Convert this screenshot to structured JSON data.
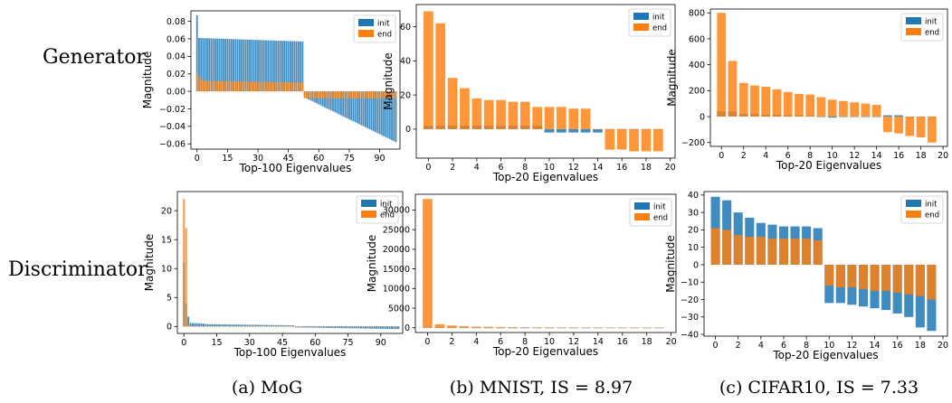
{
  "row_labels": [
    "Generator",
    "Discriminator"
  ],
  "captions": [
    "(a) MoG",
    "(b) MNIST, IS = 8.97",
    "(c) CIFAR10, IS = 7.33"
  ],
  "legend": [
    "init",
    "end"
  ],
  "colors": {
    "init": "#1f77b4",
    "end": "#ff7f0e"
  },
  "chart_data": [
    {
      "type": "bar",
      "title": "",
      "panel": "MoG Generator",
      "xlabel": "Top-100 Eigenvalues",
      "ylabel": "Magnitude",
      "xlim": [
        -3,
        100
      ],
      "ylim": [
        -0.066,
        0.092
      ],
      "xticks": [
        0,
        15,
        30,
        45,
        60,
        75,
        90
      ],
      "yticks": [
        -0.06,
        -0.04,
        -0.02,
        0.0,
        0.02,
        0.04,
        0.06,
        0.08
      ],
      "ytick_labels": [
        "−0.06",
        "−0.04",
        "−0.02",
        "0.00",
        "0.02",
        "0.04",
        "0.06",
        "0.08"
      ],
      "legend_position": "top-right",
      "series": [
        {
          "name": "init",
          "segments": [
            {
              "i0": 0,
              "i1": 0,
              "v0": 0.087,
              "v1": 0.087
            },
            {
              "i0": 1,
              "i1": 52,
              "v0": 0.061,
              "v1": 0.057
            },
            {
              "i0": 53,
              "i1": 98,
              "v0": -0.007,
              "v1": -0.058
            }
          ]
        },
        {
          "name": "end",
          "segments": [
            {
              "i0": 0,
              "i1": 0,
              "v0": 0.02,
              "v1": 0.02
            },
            {
              "i0": 1,
              "i1": 3,
              "v0": 0.016,
              "v1": 0.012
            },
            {
              "i0": 4,
              "i1": 52,
              "v0": 0.012,
              "v1": 0.01
            },
            {
              "i0": 53,
              "i1": 98,
              "v0": -0.008,
              "v1": -0.008
            }
          ]
        }
      ]
    },
    {
      "type": "bar",
      "title": "",
      "panel": "MNIST Generator",
      "xlabel": "Top-20 Eigenvalues",
      "ylabel": "Magnitude",
      "xlim": [
        -1,
        20.4
      ],
      "ylim": [
        -17,
        73
      ],
      "xticks": [
        0,
        2,
        4,
        6,
        8,
        10,
        12,
        14,
        16,
        18,
        20
      ],
      "yticks": [
        0,
        20,
        40,
        60
      ],
      "legend_position": "top-right",
      "series": [
        {
          "name": "init",
          "values": [
            2,
            2,
            2,
            2,
            2,
            2,
            2,
            2,
            2,
            2,
            -2,
            -2,
            -2,
            -2,
            -2,
            0,
            0,
            0,
            0,
            0
          ]
        },
        {
          "name": "end",
          "values": [
            69,
            62,
            30,
            24,
            18,
            17,
            17,
            16,
            16,
            13,
            13,
            13,
            12,
            12,
            0,
            -12,
            -12,
            -13,
            -13,
            -13
          ]
        }
      ]
    },
    {
      "type": "bar",
      "title": "",
      "panel": "CIFAR10 Generator",
      "xlabel": "Top-20 Eigenvalues",
      "ylabel": "Magnitude",
      "xlim": [
        -1,
        20.4
      ],
      "ylim": [
        -230,
        830
      ],
      "xticks": [
        0,
        2,
        4,
        6,
        8,
        10,
        12,
        14,
        16,
        18,
        20
      ],
      "yticks": [
        -200,
        0,
        200,
        400,
        600,
        800
      ],
      "ytick_labels": [
        "−200",
        "0",
        "200",
        "400",
        "600",
        "800"
      ],
      "legend_position": "top-right",
      "series": [
        {
          "name": "init",
          "values": [
            40,
            40,
            20,
            20,
            15,
            15,
            10,
            10,
            8,
            0,
            -8,
            0,
            0,
            0,
            0,
            10,
            10,
            0,
            0,
            0
          ]
        },
        {
          "name": "end",
          "values": [
            800,
            430,
            260,
            240,
            230,
            210,
            190,
            175,
            170,
            150,
            130,
            120,
            110,
            100,
            90,
            -120,
            -130,
            -150,
            -160,
            -200
          ]
        }
      ]
    },
    {
      "type": "bar",
      "title": "",
      "panel": "MoG Discriminator",
      "xlabel": "Top-100 Eigenvalues",
      "ylabel": "Magnitude",
      "xlim": [
        -3,
        100
      ],
      "ylim": [
        -1.2,
        23.3
      ],
      "xticks": [
        0,
        15,
        30,
        45,
        60,
        75,
        90
      ],
      "yticks": [
        0,
        5,
        10,
        15,
        20
      ],
      "legend_position": "top-right",
      "series": [
        {
          "name": "init",
          "segments": [
            {
              "i0": 0,
              "i1": 0,
              "v0": 11,
              "v1": 11
            },
            {
              "i0": 1,
              "i1": 1,
              "v0": 4,
              "v1": 4
            },
            {
              "i0": 2,
              "i1": 2,
              "v0": 1.7,
              "v1": 1.7
            },
            {
              "i0": 3,
              "i1": 9,
              "v0": 0.6,
              "v1": 0.5
            },
            {
              "i0": 10,
              "i1": 50,
              "v0": 0.4,
              "v1": 0.2
            },
            {
              "i0": 51,
              "i1": 98,
              "v0": -0.15,
              "v1": -0.45
            }
          ]
        },
        {
          "name": "end",
          "segments": [
            {
              "i0": 0,
              "i1": 0,
              "v0": 22,
              "v1": 22
            },
            {
              "i0": 1,
              "i1": 1,
              "v0": 17,
              "v1": 17
            },
            {
              "i0": 2,
              "i1": 2,
              "v0": 0.4,
              "v1": 0.4
            },
            {
              "i0": 3,
              "i1": 98,
              "v0": 0.05,
              "v1": 0.05
            }
          ]
        }
      ]
    },
    {
      "type": "bar",
      "title": "",
      "panel": "MNIST Discriminator",
      "xlabel": "Top-20 Eigenvalues",
      "ylabel": "Magnitude",
      "xlim": [
        -1,
        20.4
      ],
      "ylim": [
        -1200,
        34000
      ],
      "xticks": [
        0,
        2,
        4,
        6,
        8,
        10,
        12,
        14,
        16,
        18,
        20
      ],
      "yticks": [
        0,
        5000,
        10000,
        15000,
        20000,
        25000,
        30000
      ],
      "legend_position": "top-right",
      "series": [
        {
          "name": "init",
          "values": [
            100,
            60,
            40,
            30,
            20,
            15,
            10,
            10,
            8,
            8,
            6,
            6,
            5,
            5,
            4,
            4,
            3,
            3,
            2,
            2
          ]
        },
        {
          "name": "end",
          "values": [
            32800,
            900,
            600,
            400,
            300,
            250,
            200,
            180,
            160,
            140,
            120,
            110,
            100,
            90,
            80,
            70,
            60,
            50,
            40,
            30
          ]
        }
      ]
    },
    {
      "type": "bar",
      "title": "",
      "panel": "CIFAR10 Discriminator",
      "xlabel": "Top-20 Eigenvalues",
      "ylabel": "Magnitude",
      "xlim": [
        -1,
        20.4
      ],
      "ylim": [
        -41,
        42
      ],
      "xticks": [
        0,
        2,
        4,
        6,
        8,
        10,
        12,
        14,
        16,
        18,
        20
      ],
      "yticks": [
        -40,
        -30,
        -20,
        -10,
        0,
        10,
        20,
        30,
        40
      ],
      "ytick_labels": [
        "−40",
        "−30",
        "−20",
        "−10",
        "0",
        "10",
        "20",
        "30",
        "40"
      ],
      "legend_position": "top-right",
      "series": [
        {
          "name": "init",
          "values": [
            39,
            37,
            30,
            27,
            24,
            23,
            22,
            22,
            22,
            21,
            -22,
            -22,
            -23,
            -24,
            -25,
            -26,
            -28,
            -30,
            -36,
            -38
          ]
        },
        {
          "name": "end",
          "values": [
            21,
            20,
            17,
            16,
            16,
            15,
            15,
            15,
            15,
            14,
            -12,
            -13,
            -13,
            -14,
            -15,
            -15,
            -16,
            -17,
            -18,
            -20
          ]
        }
      ]
    }
  ]
}
